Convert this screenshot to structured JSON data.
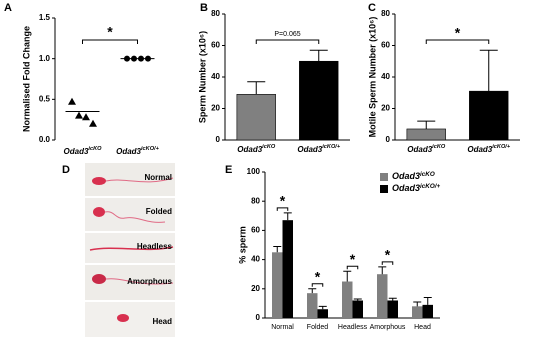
{
  "panel_labels": [
    "A",
    "B",
    "C",
    "D",
    "E"
  ],
  "sperm_images": {
    "labels": [
      "Normal",
      "Folded",
      "Headless",
      "Amorphous",
      "Head"
    ]
  },
  "chart_data": [
    {
      "type": "dot",
      "y_label": "Normalised Fold Change",
      "categories": [
        "Odad3icKO",
        "Odad3icKO/+"
      ],
      "points": [
        [
          0.47,
          0.3,
          0.28,
          0.2
        ],
        [
          1.0,
          1.0,
          1.0,
          1.0
        ]
      ],
      "means": [
        0.35,
        1.0
      ],
      "markers": [
        "triangle",
        "circle"
      ],
      "color": "#000000",
      "significance": "*",
      "ylim": [
        0,
        1.5
      ],
      "yticks": [
        {
          "value": 0,
          "label": "0.0"
        },
        {
          "value": 0.5,
          "label": "0.5"
        },
        {
          "value": 1,
          "label": "1.0"
        },
        {
          "value": 1.5,
          "label": "1.5"
        }
      ]
    },
    {
      "type": "bar",
      "y_label": "Sperm Number (x10⁶)",
      "categories": [
        "Odad3icKO",
        "Odad3icKO/+"
      ],
      "values": [
        29,
        50
      ],
      "errors": [
        8,
        7
      ],
      "colors": [
        "#808080",
        "#000000"
      ],
      "significance": "P=0.065",
      "ylim": [
        0,
        80
      ],
      "yticks": [
        0,
        20,
        40,
        60,
        80
      ]
    },
    {
      "type": "bar",
      "y_label": "Motile Sperm Number (x10⁶)",
      "categories": [
        "Odad3icKO",
        "Odad3icKO/+"
      ],
      "values": [
        7,
        31
      ],
      "errors": [
        5,
        26
      ],
      "colors": [
        "#808080",
        "#000000"
      ],
      "significance": "*",
      "ylim": [
        0,
        80
      ],
      "yticks": [
        0,
        20,
        40,
        60,
        80
      ]
    },
    {
      "type": "grouped_bar",
      "y_label": "% sperm",
      "categories": [
        "Normal",
        "Folded",
        "Headless",
        "Amorphous",
        "Head"
      ],
      "series": [
        {
          "name": "Odad3icKO",
          "color": "#808080",
          "values": [
            45,
            17,
            25,
            30,
            8
          ],
          "errors": [
            4,
            3,
            7,
            5,
            3
          ]
        },
        {
          "name": "Odad3icKO/+",
          "color": "#000000",
          "values": [
            67,
            6,
            12,
            12,
            9
          ],
          "errors": [
            5,
            2,
            1,
            1.5,
            5
          ]
        }
      ],
      "significance": [
        "*",
        "*",
        "*",
        "*",
        null
      ],
      "ylim": [
        0,
        100
      ],
      "yticks": [
        0,
        20,
        40,
        60,
        80,
        100
      ],
      "legend": "upper-right"
    }
  ]
}
